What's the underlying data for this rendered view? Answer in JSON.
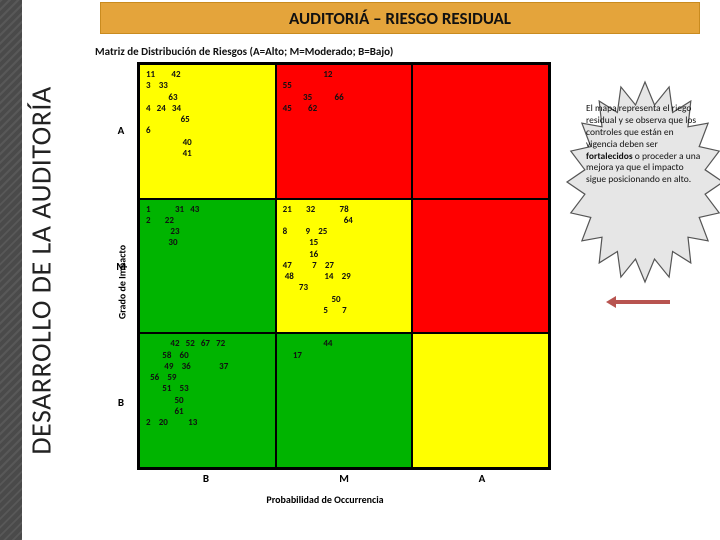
{
  "sidebar": {
    "label": "DESARROLLO DE LA AUDITORÍA"
  },
  "header": {
    "title": "AUDITORIÁ – RIESGO RESIDUAL",
    "bg": "#e4a43b",
    "border": "#c98b1f"
  },
  "chart": {
    "type": "heatmap",
    "title": "Matriz de Distribución de Riesgos (A=Alto; M=Moderado; B=Bajo)",
    "x_axis": {
      "title": "Probabilidad de Occurrencia",
      "ticks": [
        "B",
        "M",
        "A"
      ]
    },
    "y_axis": {
      "title": "Grado de Impacto",
      "ticks": [
        "A",
        "M",
        "B"
      ]
    },
    "colors": {
      "green": "#00b400",
      "yellow": "#ffff00",
      "red": "#ff0000",
      "grid_border": "#000000",
      "text": "#111111"
    },
    "label_fontsize": 9,
    "cells": [
      {
        "r": 0,
        "c": 0,
        "color": "yellow",
        "lines": [
          "11        42",
          "3    33",
          "           63",
          "4   24   34",
          "                 65",
          "6",
          "",
          "                  40",
          "                  41"
        ]
      },
      {
        "r": 0,
        "c": 1,
        "color": "red",
        "lines": [
          "                    12",
          "55",
          "",
          "          35           66",
          "45        62"
        ]
      },
      {
        "r": 0,
        "c": 2,
        "color": "red",
        "lines": [
          ""
        ]
      },
      {
        "r": 1,
        "c": 0,
        "color": "green",
        "lines": [
          "1            31   43",
          "2       22",
          "            23",
          "",
          "",
          "",
          "",
          "",
          "",
          "           30"
        ]
      },
      {
        "r": 1,
        "c": 1,
        "color": "yellow",
        "lines": [
          "21       32            78",
          "                              64",
          "8         9    25",
          "             15",
          "             16",
          "47          7    27",
          " 48               14    29",
          "        73",
          "                        50",
          "                    5       7"
        ]
      },
      {
        "r": 1,
        "c": 2,
        "color": "red",
        "lines": [
          ""
        ]
      },
      {
        "r": 2,
        "c": 0,
        "color": "green",
        "lines": [
          "",
          "            42   52   67   72",
          "        58    60",
          "         49    36              37",
          "  56    59",
          "        51    53",
          "              50",
          "              61",
          "2    20          13"
        ]
      },
      {
        "r": 2,
        "c": 1,
        "color": "green",
        "lines": [
          "",
          "",
          "",
          "                    44",
          "",
          "",
          "     17"
        ]
      },
      {
        "r": 2,
        "c": 2,
        "color": "yellow",
        "lines": [
          ""
        ]
      }
    ]
  },
  "callout": {
    "fill": "#e6e6e6",
    "stroke": "#555555",
    "text_parts": [
      "El mapa representa el riego residual y se observa que los controles que están en vigencia deben ser ",
      "fortalecidos",
      " o proceder a una mejora ya que el impacto sigue posicionando en alto."
    ],
    "arrow_color": "#b85450"
  }
}
